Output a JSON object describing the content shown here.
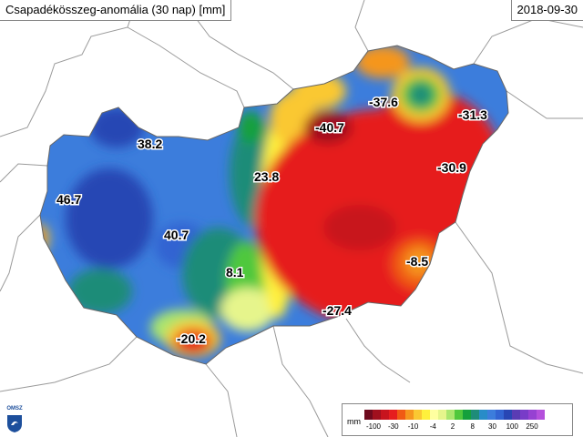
{
  "header": {
    "title": "Csapadékösszeg-anomália (30 nap) [mm]",
    "date": "2018-09-30"
  },
  "map": {
    "value_labels": [
      "38.2",
      "46.7",
      "40.7",
      "23.8",
      "8.1",
      "-20.2",
      "-40.7",
      "-37.6",
      "-31.3",
      "-30.9",
      "-8.5",
      "-27.4"
    ]
  },
  "legend": {
    "unit": "mm",
    "colors": [
      "#6e0a1e",
      "#a0101e",
      "#c8141e",
      "#e61e1e",
      "#f05a14",
      "#f5961e",
      "#fac832",
      "#fff03c",
      "#ffffa0",
      "#e6f58c",
      "#aae66e",
      "#50c83c",
      "#14a03c",
      "#1e8c78",
      "#288cc8",
      "#3c7ddc",
      "#3264d2",
      "#2846b4",
      "#5a3cb4",
      "#783cc8",
      "#9641d2",
      "#b450dc"
    ],
    "ticks": [
      "-100",
      "-30",
      "-10",
      "-4",
      "2",
      "8",
      "30",
      "100",
      "250"
    ]
  },
  "logo": {
    "text": "OMSZ"
  }
}
